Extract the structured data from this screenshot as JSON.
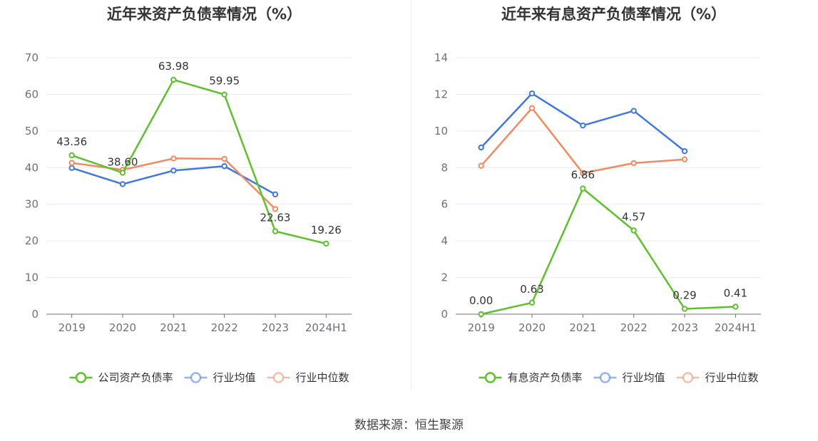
{
  "source": "数据来源：恒生聚源",
  "chart_data": [
    {
      "type": "line",
      "title": "近年来资产负债率情况（%）",
      "categories": [
        "2019",
        "2020",
        "2021",
        "2022",
        "2023",
        "2024H1"
      ],
      "ylim": [
        0,
        70
      ],
      "yticks": [
        0,
        10,
        20,
        30,
        40,
        50,
        60,
        70
      ],
      "grid": true,
      "legend_position": "bottom",
      "series": [
        {
          "name": "公司资产负债率",
          "color": "#5cc22b",
          "values": [
            43.36,
            38.6,
            63.98,
            59.95,
            22.63,
            19.26
          ],
          "labels": [
            "43.36",
            "38.60",
            "63.98",
            "59.95",
            "22.63",
            "19.26"
          ]
        },
        {
          "name": "行业均值",
          "color": "#3e78e0",
          "values": [
            39.9,
            35.5,
            39.2,
            40.4,
            32.7,
            null
          ]
        },
        {
          "name": "行业中位数",
          "color": "#f28a5e",
          "values": [
            41.3,
            39.4,
            42.5,
            42.4,
            28.7,
            null
          ]
        }
      ]
    },
    {
      "type": "line",
      "title": "近年来有息资产负债率情况（%）",
      "categories": [
        "2019",
        "2020",
        "2021",
        "2022",
        "2023",
        "2024H1"
      ],
      "ylim": [
        0,
        14
      ],
      "yticks": [
        0,
        2,
        4,
        6,
        8,
        10,
        12,
        14
      ],
      "grid": true,
      "legend_position": "bottom",
      "series": [
        {
          "name": "有息资产负债率",
          "color": "#5cc22b",
          "values": [
            0.0,
            0.63,
            6.86,
            4.57,
            0.29,
            0.41
          ],
          "labels": [
            "0.00",
            "0.63",
            "6.86",
            "4.57",
            "0.29",
            "0.41"
          ]
        },
        {
          "name": "行业均值",
          "color": "#3e78e0",
          "values": [
            9.1,
            12.05,
            10.3,
            11.1,
            8.9,
            null
          ]
        },
        {
          "name": "行业中位数",
          "color": "#f28a5e",
          "values": [
            8.1,
            11.25,
            7.7,
            8.25,
            8.45,
            null
          ]
        }
      ]
    }
  ]
}
